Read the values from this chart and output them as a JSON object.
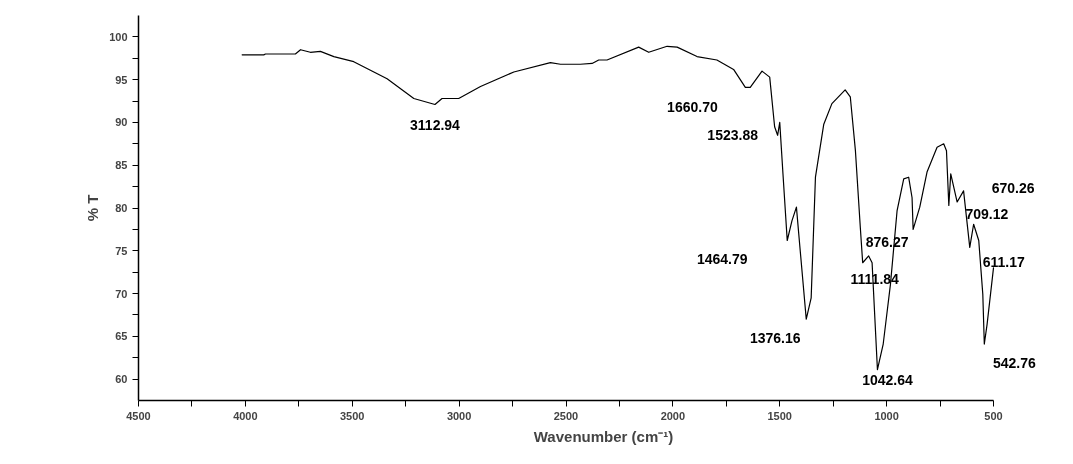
{
  "chart_data": {
    "type": "line",
    "xlabel": "Wavenumber (cm⁻¹)",
    "ylabel": "% T",
    "xlim": [
      4500,
      500
    ],
    "ylim": [
      57.5,
      102.5
    ],
    "xticks": [
      4500,
      {
        "value": 4250,
        "label": null
      },
      4000,
      {
        "value": 3750,
        "label": null
      },
      3500,
      {
        "value": 3250,
        "label": null
      },
      3000,
      {
        "value": 2750,
        "label": null
      },
      2500,
      {
        "value": 2250,
        "label": null
      },
      2000,
      {
        "value": 1750,
        "label": null
      },
      1500,
      {
        "value": 1250,
        "label": null
      },
      1000,
      {
        "value": 750,
        "label": null
      },
      500
    ],
    "yticks": [
      60,
      {
        "value": 62.5,
        "label": null
      },
      65,
      {
        "value": 67.5,
        "label": null
      },
      70,
      {
        "value": 72.5,
        "label": null
      },
      75,
      {
        "value": 77.5,
        "label": null
      },
      80,
      {
        "value": 82.5,
        "label": null
      },
      85,
      {
        "value": 87.5,
        "label": null
      },
      90,
      {
        "value": 92.5,
        "label": null
      },
      95,
      {
        "value": 97.5,
        "label": null
      },
      100
    ],
    "line_style": "solid",
    "series": [
      {
        "color": "#000000",
        "x": [
          4015,
          3914,
          3906,
          3766,
          3742,
          3696,
          3649,
          3586,
          3493,
          3337,
          3212,
          3113,
          3080,
          3002,
          2900,
          2744,
          2573,
          2526,
          2433,
          2378,
          2347,
          2308,
          2160,
          2113,
          2027,
          1980,
          1887,
          1794,
          1716,
          1661,
          1638,
          1583,
          1547,
          1524,
          1510,
          1500,
          1485,
          1465,
          1443,
          1422,
          1407,
          1376,
          1353,
          1333,
          1294,
          1256,
          1194,
          1170,
          1146,
          1123,
          1112,
          1084,
          1068,
          1043,
          1016,
          982,
          951,
          920,
          897,
          881,
          876,
          845,
          811,
          764,
          733,
          720,
          709,
          700,
          670,
          640,
          611,
          593,
          569,
          550,
          543,
          530,
          500
        ],
        "values": [
          97.9,
          97.9,
          98.0,
          98.0,
          98.5,
          98.2,
          98.3,
          97.7,
          97.1,
          95.1,
          92.8,
          92.1,
          92.8,
          92.8,
          94.2,
          95.9,
          97.0,
          96.8,
          96.8,
          96.9,
          97.3,
          97.3,
          98.8,
          98.2,
          98.9,
          98.8,
          97.7,
          97.3,
          96.2,
          94.1,
          94.1,
          96.0,
          95.3,
          89.5,
          88.5,
          90.0,
          84.0,
          76.2,
          78.5,
          80.1,
          75.8,
          67.0,
          69.5,
          83.6,
          89.8,
          92.2,
          93.8,
          93.0,
          86.7,
          77.7,
          73.6,
          74.4,
          73.6,
          61.1,
          64.1,
          71.1,
          79.7,
          83.4,
          83.6,
          81.2,
          77.5,
          80.1,
          84.2,
          87.1,
          87.5,
          86.7,
          80.3,
          84.0,
          80.7,
          82.0,
          75.4,
          78.1,
          76.2,
          69.9,
          64.1,
          66.4,
          73.0
        ]
      }
    ],
    "annotations": [
      {
        "text": "3112.94",
        "x": 3112.94,
        "y": 92.1
      },
      {
        "text": "1660.70",
        "x": 1660.7,
        "y": 94.1
      },
      {
        "text": "1523.88",
        "x": 1523.88,
        "y": 89.5
      },
      {
        "text": "1464.79",
        "x": 1464.79,
        "y": 76.2
      },
      {
        "text": "1376.16",
        "x": 1376.16,
        "y": 67.0
      },
      {
        "text": "1111.84",
        "x": 1111.84,
        "y": 73.6
      },
      {
        "text": "1042.64",
        "x": 1042.64,
        "y": 61.1
      },
      {
        "text": "876.27",
        "x": 876.27,
        "y": 77.5
      },
      {
        "text": "709.12",
        "x": 709.12,
        "y": 80.3
      },
      {
        "text": "670.26",
        "x": 670.26,
        "y": 80.7
      },
      {
        "text": "611.17",
        "x": 611.17,
        "y": 75.4
      },
      {
        "text": "542.76",
        "x": 542.76,
        "y": 64.1
      }
    ]
  }
}
